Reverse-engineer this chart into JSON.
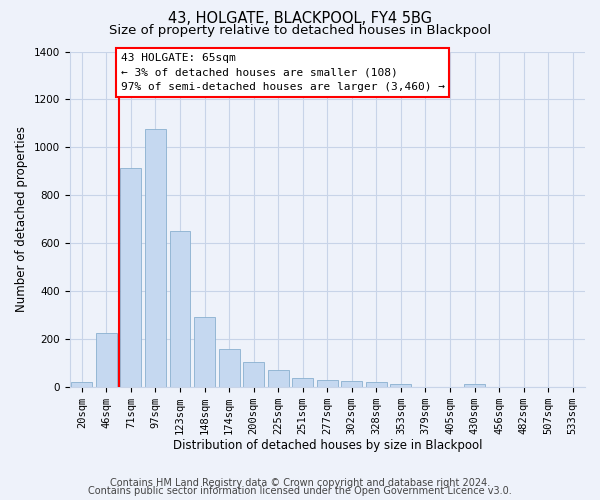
{
  "title": "43, HOLGATE, BLACKPOOL, FY4 5BG",
  "subtitle": "Size of property relative to detached houses in Blackpool",
  "xlabel": "Distribution of detached houses by size in Blackpool",
  "ylabel": "Number of detached properties",
  "categories": [
    "20sqm",
    "46sqm",
    "71sqm",
    "97sqm",
    "123sqm",
    "148sqm",
    "174sqm",
    "200sqm",
    "225sqm",
    "251sqm",
    "277sqm",
    "302sqm",
    "328sqm",
    "353sqm",
    "379sqm",
    "405sqm",
    "430sqm",
    "456sqm",
    "482sqm",
    "507sqm",
    "533sqm"
  ],
  "values": [
    18,
    225,
    915,
    1075,
    650,
    293,
    158,
    105,
    68,
    35,
    28,
    22,
    18,
    12,
    0,
    0,
    10,
    0,
    0,
    0,
    0
  ],
  "bar_color": "#c5d8f0",
  "bar_edgecolor": "#8ab0d0",
  "vline_pos": 1.5,
  "vline_color": "red",
  "annotation_text": "43 HOLGATE: 65sqm\n← 3% of detached houses are smaller (108)\n97% of semi-detached houses are larger (3,460) →",
  "annotation_box_facecolor": "white",
  "annotation_box_edgecolor": "red",
  "ylim": [
    0,
    1400
  ],
  "yticks": [
    0,
    200,
    400,
    600,
    800,
    1000,
    1200,
    1400
  ],
  "footer_line1": "Contains HM Land Registry data © Crown copyright and database right 2024.",
  "footer_line2": "Contains public sector information licensed under the Open Government Licence v3.0.",
  "bg_color": "#eef2fa",
  "grid_color": "#c8d4e8",
  "title_fontsize": 10.5,
  "subtitle_fontsize": 9.5,
  "axis_label_fontsize": 8.5,
  "tick_fontsize": 7.5,
  "footer_fontsize": 7,
  "ann_fontsize": 8
}
